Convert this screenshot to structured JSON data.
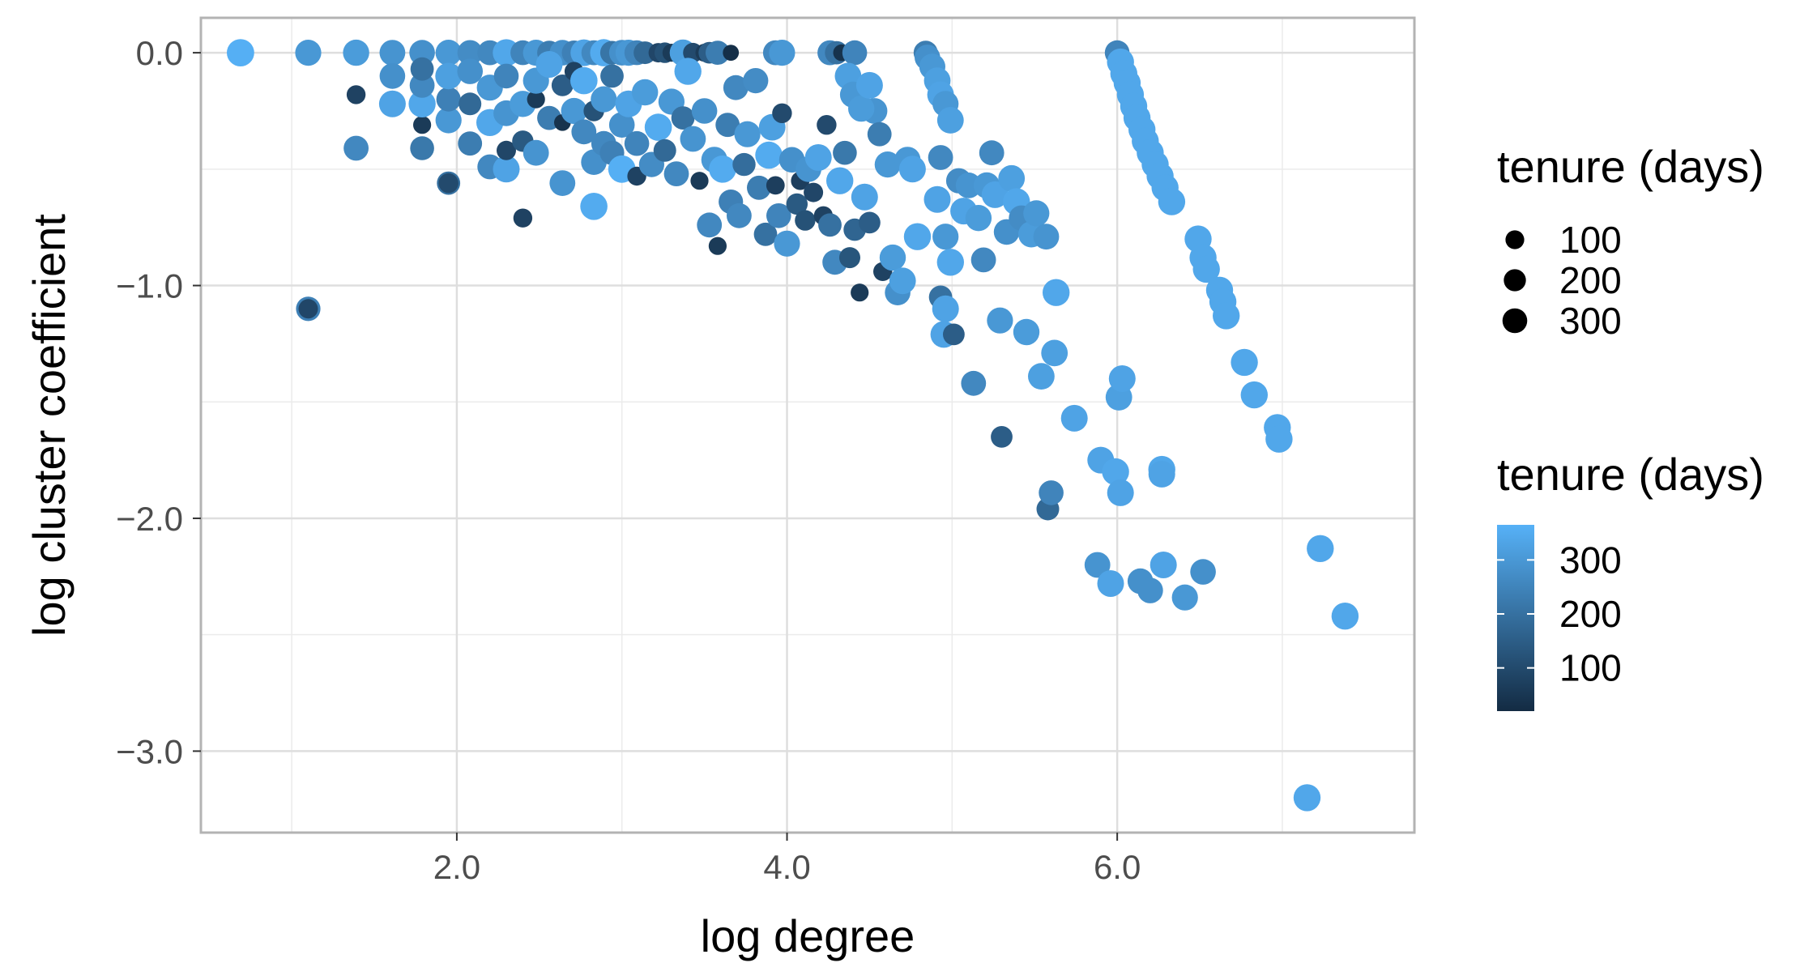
{
  "chart_data": {
    "type": "scatter",
    "title": "",
    "xlabel": "log degree",
    "ylabel": "log cluster coefficient",
    "xlim": [
      0.45,
      7.8
    ],
    "ylim": [
      -3.35,
      0.15
    ],
    "xticks": [
      2.0,
      4.0,
      6.0
    ],
    "xtick_labels": [
      "2.0",
      "4.0",
      "6.0"
    ],
    "yticks": [
      0.0,
      -1.0,
      -2.0,
      -3.0
    ],
    "ytick_labels": [
      "0.0",
      "−1.0",
      "−2.0",
      "−3.0"
    ],
    "grid": true,
    "color_scale": {
      "low": "#132b43",
      "high": "#56b1f7",
      "min": 20,
      "max": 365
    },
    "legends": [
      {
        "type": "size",
        "title": "tenure (days)",
        "labels": [
          "100",
          "200",
          "300"
        ],
        "values": [
          100,
          200,
          300
        ],
        "placement": "right"
      },
      {
        "type": "color",
        "title": "tenure (days)",
        "labels": [
          "300",
          "200",
          "100"
        ],
        "values": [
          300,
          200,
          100
        ],
        "placement": "right"
      }
    ],
    "points": [
      [
        0.69,
        0,
        360
      ],
      [
        1.1,
        0,
        300
      ],
      [
        1.39,
        0,
        310
      ],
      [
        1.61,
        0,
        290
      ],
      [
        1.79,
        0,
        280
      ],
      [
        1.95,
        0,
        300
      ],
      [
        2.08,
        0,
        270
      ],
      [
        2.2,
        0,
        260
      ],
      [
        2.3,
        0,
        340
      ],
      [
        2.4,
        0,
        250
      ],
      [
        2.48,
        0,
        300
      ],
      [
        2.56,
        0,
        230
      ],
      [
        2.64,
        0,
        280
      ],
      [
        2.71,
        0,
        240
      ],
      [
        2.77,
        0,
        330
      ],
      [
        2.83,
        0,
        260
      ],
      [
        2.89,
        0,
        350
      ],
      [
        2.94,
        0,
        210
      ],
      [
        3.0,
        0,
        280
      ],
      [
        3.04,
        0,
        300
      ],
      [
        3.09,
        0,
        250
      ],
      [
        3.14,
        0,
        180
      ],
      [
        3.22,
        0,
        90
      ],
      [
        3.26,
        0,
        120
      ],
      [
        3.3,
        0,
        60
      ],
      [
        3.37,
        0,
        320
      ],
      [
        3.43,
        0,
        100
      ],
      [
        3.5,
        0,
        60
      ],
      [
        3.53,
        0,
        150
      ],
      [
        3.58,
        0,
        230
      ],
      [
        3.66,
        0,
        30
      ],
      [
        3.93,
        0,
        260
      ],
      [
        3.97,
        0,
        300
      ],
      [
        4.26,
        0,
        260
      ],
      [
        4.3,
        0,
        200
      ],
      [
        4.33,
        0,
        40
      ],
      [
        4.41,
        0,
        250
      ],
      [
        4.84,
        0,
        230
      ],
      [
        6.0,
        0,
        250
      ],
      [
        1.1,
        -1.1,
        240
      ],
      [
        1.1,
        -1.1,
        90
      ],
      [
        1.95,
        -0.56,
        200
      ],
      [
        1.95,
        -0.56,
        100
      ],
      [
        1.39,
        -0.41,
        260
      ],
      [
        1.39,
        -0.18,
        80
      ],
      [
        1.61,
        -0.22,
        330
      ],
      [
        1.61,
        -0.1,
        280
      ],
      [
        1.79,
        -0.41,
        220
      ],
      [
        1.79,
        -0.31,
        60
      ],
      [
        1.79,
        -0.22,
        340
      ],
      [
        1.79,
        -0.14,
        260
      ],
      [
        1.79,
        -0.07,
        200
      ],
      [
        1.95,
        -0.29,
        300
      ],
      [
        1.95,
        -0.2,
        240
      ],
      [
        1.95,
        -0.1,
        320
      ],
      [
        2.08,
        -0.39,
        230
      ],
      [
        2.08,
        -0.22,
        180
      ],
      [
        2.08,
        -0.08,
        280
      ],
      [
        2.2,
        -0.49,
        260
      ],
      [
        2.2,
        -0.3,
        340
      ],
      [
        2.2,
        -0.15,
        300
      ],
      [
        2.3,
        -0.5,
        330
      ],
      [
        2.3,
        -0.42,
        90
      ],
      [
        2.3,
        -0.26,
        290
      ],
      [
        2.3,
        -0.1,
        250
      ],
      [
        2.4,
        -0.71,
        80
      ],
      [
        2.4,
        -0.38,
        140
      ],
      [
        2.4,
        -0.22,
        310
      ],
      [
        2.48,
        -0.43,
        290
      ],
      [
        2.48,
        -0.2,
        60
      ],
      [
        2.48,
        -0.12,
        300
      ],
      [
        2.56,
        -0.28,
        230
      ],
      [
        2.56,
        -0.05,
        330
      ],
      [
        2.64,
        -0.56,
        290
      ],
      [
        2.64,
        -0.3,
        40
      ],
      [
        2.64,
        -0.14,
        150
      ],
      [
        2.71,
        -0.25,
        300
      ],
      [
        2.71,
        -0.08,
        80
      ],
      [
        2.77,
        -0.34,
        260
      ],
      [
        2.77,
        -0.12,
        350
      ],
      [
        2.83,
        -0.66,
        350
      ],
      [
        2.83,
        -0.47,
        280
      ],
      [
        2.83,
        -0.25,
        120
      ],
      [
        2.89,
        -0.39,
        260
      ],
      [
        2.89,
        -0.2,
        300
      ],
      [
        2.94,
        -0.43,
        240
      ],
      [
        2.94,
        -0.1,
        200
      ],
      [
        3.0,
        -0.5,
        360
      ],
      [
        3.0,
        -0.31,
        280
      ],
      [
        3.04,
        -0.22,
        330
      ],
      [
        3.09,
        -0.53,
        80
      ],
      [
        3.09,
        -0.39,
        250
      ],
      [
        3.14,
        -0.17,
        310
      ],
      [
        3.18,
        -0.48,
        270
      ],
      [
        3.22,
        -0.32,
        350
      ],
      [
        3.26,
        -0.42,
        180
      ],
      [
        3.3,
        -0.21,
        300
      ],
      [
        3.33,
        -0.52,
        260
      ],
      [
        3.37,
        -0.28,
        200
      ],
      [
        3.4,
        -0.08,
        340
      ],
      [
        3.43,
        -0.37,
        290
      ],
      [
        3.47,
        -0.55,
        60
      ],
      [
        3.5,
        -0.25,
        280
      ],
      [
        3.53,
        -0.74,
        260
      ],
      [
        3.56,
        -0.46,
        300
      ],
      [
        3.58,
        -0.83,
        60
      ],
      [
        3.61,
        -0.5,
        350
      ],
      [
        3.64,
        -0.31,
        230
      ],
      [
        3.66,
        -0.64,
        240
      ],
      [
        3.69,
        -0.15,
        260
      ],
      [
        3.71,
        -0.7,
        260
      ],
      [
        3.74,
        -0.48,
        190
      ],
      [
        3.76,
        -0.35,
        300
      ],
      [
        3.81,
        -0.12,
        270
      ],
      [
        3.83,
        -0.58,
        230
      ],
      [
        3.87,
        -0.78,
        200
      ],
      [
        3.89,
        -0.44,
        350
      ],
      [
        3.91,
        -0.32,
        320
      ],
      [
        3.93,
        -0.57,
        70
      ],
      [
        3.95,
        -0.7,
        250
      ],
      [
        3.97,
        -0.26,
        100
      ],
      [
        4.0,
        -0.82,
        300
      ],
      [
        4.03,
        -0.46,
        280
      ],
      [
        4.06,
        -0.65,
        140
      ],
      [
        4.08,
        -0.55,
        70
      ],
      [
        4.11,
        -0.72,
        120
      ],
      [
        4.13,
        -0.5,
        290
      ],
      [
        4.16,
        -0.6,
        90
      ],
      [
        4.19,
        -0.45,
        330
      ],
      [
        4.22,
        -0.7,
        80
      ],
      [
        4.24,
        -0.31,
        100
      ],
      [
        4.26,
        -0.74,
        200
      ],
      [
        4.29,
        -0.9,
        260
      ],
      [
        4.32,
        -0.55,
        340
      ],
      [
        4.35,
        -0.43,
        220
      ],
      [
        4.38,
        -0.88,
        130
      ],
      [
        4.41,
        -0.76,
        170
      ],
      [
        4.44,
        -1.03,
        60
      ],
      [
        4.47,
        -0.62,
        330
      ],
      [
        4.5,
        -0.73,
        150
      ],
      [
        4.53,
        -0.25,
        290
      ],
      [
        4.56,
        -0.35,
        230
      ],
      [
        4.58,
        -0.94,
        80
      ],
      [
        4.61,
        -0.48,
        300
      ],
      [
        4.64,
        -0.88,
        310
      ],
      [
        4.67,
        -1.03,
        280
      ],
      [
        4.7,
        -0.98,
        320
      ],
      [
        4.73,
        -0.46,
        300
      ],
      [
        4.76,
        -0.5,
        330
      ],
      [
        4.79,
        -0.79,
        340
      ],
      [
        4.37,
        -0.1,
        320
      ],
      [
        4.4,
        -0.18,
        300
      ],
      [
        4.45,
        -0.24,
        310
      ],
      [
        4.5,
        -0.14,
        330
      ],
      [
        4.85,
        -0.02,
        280
      ],
      [
        4.88,
        -0.06,
        300
      ],
      [
        4.91,
        -0.12,
        320
      ],
      [
        4.93,
        -0.18,
        330
      ],
      [
        4.96,
        -0.22,
        300
      ],
      [
        4.99,
        -0.29,
        320
      ],
      [
        4.93,
        -0.45,
        260
      ],
      [
        4.91,
        -0.63,
        330
      ],
      [
        4.96,
        -0.79,
        300
      ],
      [
        4.99,
        -0.9,
        340
      ],
      [
        4.93,
        -1.05,
        200
      ],
      [
        4.96,
        -1.1,
        330
      ],
      [
        4.95,
        -1.21,
        330
      ],
      [
        5.01,
        -1.21,
        150
      ],
      [
        5.04,
        -0.55,
        270
      ],
      [
        5.07,
        -0.68,
        330
      ],
      [
        5.1,
        -0.57,
        290
      ],
      [
        5.13,
        -1.42,
        260
      ],
      [
        5.16,
        -0.71,
        310
      ],
      [
        5.19,
        -0.89,
        260
      ],
      [
        5.21,
        -0.57,
        300
      ],
      [
        5.24,
        -0.43,
        260
      ],
      [
        5.26,
        -0.61,
        330
      ],
      [
        5.29,
        -1.15,
        300
      ],
      [
        5.3,
        -1.65,
        150
      ],
      [
        5.33,
        -0.77,
        280
      ],
      [
        5.36,
        -0.54,
        320
      ],
      [
        5.39,
        -0.64,
        340
      ],
      [
        5.42,
        -0.71,
        270
      ],
      [
        5.45,
        -1.2,
        310
      ],
      [
        5.48,
        -0.78,
        310
      ],
      [
        5.51,
        -0.69,
        300
      ],
      [
        5.54,
        -1.39,
        320
      ],
      [
        5.57,
        -0.79,
        290
      ],
      [
        5.58,
        -1.96,
        180
      ],
      [
        5.6,
        -1.89,
        250
      ],
      [
        5.62,
        -1.29,
        320
      ],
      [
        5.63,
        -1.03,
        340
      ],
      [
        5.74,
        -1.57,
        330
      ],
      [
        5.88,
        -2.2,
        290
      ],
      [
        5.9,
        -1.75,
        330
      ],
      [
        5.96,
        -2.28,
        330
      ],
      [
        5.99,
        -1.8,
        340
      ],
      [
        6.01,
        -1.48,
        320
      ],
      [
        6.03,
        -1.4,
        330
      ],
      [
        6.02,
        -1.89,
        330
      ],
      [
        6.14,
        -2.27,
        280
      ],
      [
        6.2,
        -2.31,
        280
      ],
      [
        6.27,
        -1.79,
        340
      ],
      [
        6.27,
        -1.81,
        330
      ],
      [
        6.28,
        -2.2,
        330
      ],
      [
        6.41,
        -2.34,
        300
      ],
      [
        6.52,
        -2.23,
        280
      ],
      [
        7.15,
        -3.2,
        340
      ],
      [
        7.23,
        -2.13,
        340
      ],
      [
        7.38,
        -2.42,
        340
      ],
      [
        6.02,
        -0.04,
        340
      ],
      [
        6.04,
        -0.09,
        340
      ],
      [
        6.06,
        -0.13,
        340
      ],
      [
        6.08,
        -0.18,
        340
      ],
      [
        6.1,
        -0.23,
        340
      ],
      [
        6.12,
        -0.28,
        340
      ],
      [
        6.15,
        -0.33,
        340
      ],
      [
        6.17,
        -0.38,
        340
      ],
      [
        6.2,
        -0.43,
        340
      ],
      [
        6.23,
        -0.48,
        340
      ],
      [
        6.26,
        -0.53,
        340
      ],
      [
        6.29,
        -0.58,
        340
      ],
      [
        6.33,
        -0.64,
        340
      ],
      [
        6.49,
        -0.8,
        340
      ],
      [
        6.52,
        -0.88,
        340
      ],
      [
        6.54,
        -0.93,
        340
      ],
      [
        6.62,
        -1.02,
        340
      ],
      [
        6.64,
        -1.07,
        340
      ],
      [
        6.66,
        -1.13,
        340
      ],
      [
        6.77,
        -1.33,
        340
      ],
      [
        6.83,
        -1.47,
        340
      ],
      [
        6.97,
        -1.61,
        340
      ],
      [
        6.98,
        -1.66,
        340
      ]
    ]
  }
}
